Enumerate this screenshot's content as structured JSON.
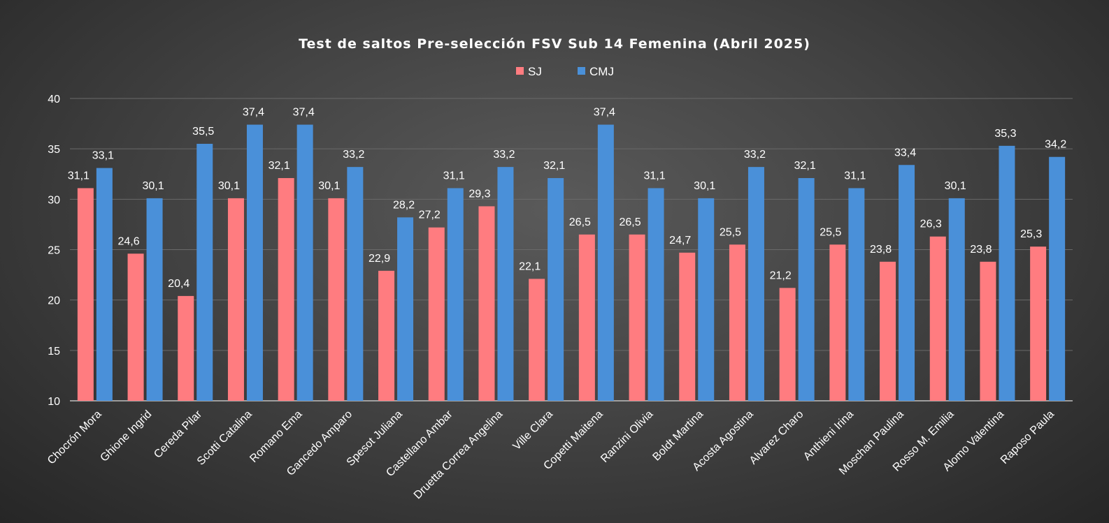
{
  "chart_data": {
    "type": "bar",
    "title": "Test de saltos Pre-selección FSV Sub 14 Femenina (Abril 2025)",
    "xlabel": "",
    "ylabel": "",
    "ylim": [
      10,
      40
    ],
    "yticks": [
      10,
      15,
      20,
      25,
      30,
      35,
      40
    ],
    "grid": true,
    "legend_position": "top",
    "categories": [
      "Chocrón Mora",
      "Ghione Ingrid",
      "Cereda Pilar",
      "Scotti Catalina",
      "Romano Ema",
      "Gancedo Amparo",
      "Spesot Juliana",
      "Castellano Ambar",
      "Druetta Correa Angelina",
      "Ville Clara",
      "Copetti Maitena",
      "Ranzini Olivia",
      "Boldt Martina",
      "Acosta Agostina",
      "Alvarez Charo",
      "Anthieni Irina",
      "Moschan Paulina",
      "Rosso M. Emilia",
      "Alomo Valentina",
      "Raposo Paula"
    ],
    "series": [
      {
        "name": "SJ",
        "color": "#ff7c80",
        "values": [
          31.1,
          24.6,
          20.4,
          30.1,
          32.1,
          30.1,
          22.9,
          27.2,
          29.3,
          22.1,
          26.5,
          26.5,
          24.7,
          25.5,
          21.2,
          25.5,
          23.8,
          26.3,
          23.8,
          25.3
        ],
        "labels": [
          "31,1",
          "24,6",
          "20,4",
          "30,1",
          "32,1",
          "30,1",
          "22,9",
          "27,2",
          "29,3",
          "22,1",
          "26,5",
          "26,5",
          "24,7",
          "25,5",
          "21,2",
          "25,5",
          "23,8",
          "26,3",
          "23,8",
          "25,3"
        ]
      },
      {
        "name": "CMJ",
        "color": "#4a90d9",
        "values": [
          33.1,
          30.1,
          35.5,
          37.4,
          37.4,
          33.2,
          28.2,
          31.1,
          33.2,
          32.1,
          37.4,
          31.1,
          30.1,
          33.2,
          32.1,
          31.1,
          33.4,
          30.1,
          35.3,
          34.2
        ],
        "labels": [
          "33,1",
          "30,1",
          "35,5",
          "37,4",
          "37,4",
          "33,2",
          "28,2",
          "31,1",
          "33,2",
          "32,1",
          "37,4",
          "31,1",
          "30,1",
          "33,2",
          "32,1",
          "31,1",
          "33,4",
          "30,1",
          "35,3",
          "34,2"
        ]
      }
    ]
  }
}
